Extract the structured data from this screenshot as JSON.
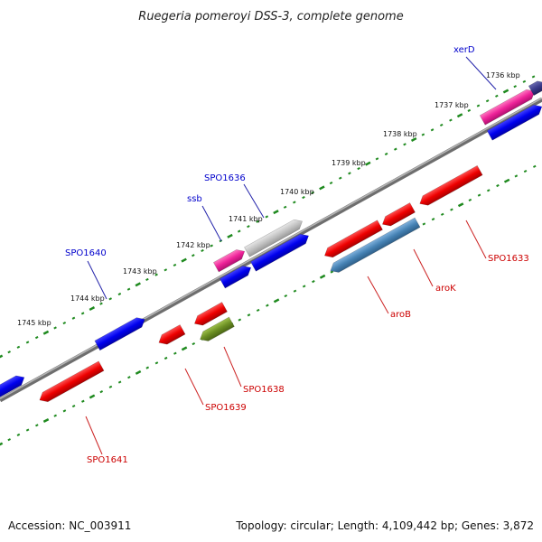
{
  "title": "Ruegeria pomeroyi DSS-3, complete genome",
  "footer": {
    "accession": "Accession: NC_003911",
    "summary": "Topology: circular; Length: 4,109,442 bp; Genes: 3,872"
  },
  "kbp_ticks": [
    "1736 kbp",
    "1737 kbp",
    "1738 kbp",
    "1739 kbp",
    "1740 kbp",
    "1741 kbp",
    "1742 kbp",
    "1743 kbp",
    "1744 kbp",
    "1745 kbp"
  ],
  "forward_labels": [
    "xerD",
    "SPO1636",
    "ssb",
    "SPO1640"
  ],
  "reverse_labels": [
    "SPO1633",
    "aroK",
    "aroB",
    "SPO1638",
    "SPO1639",
    "SPO1641"
  ],
  "colors": {
    "forward_label": "#0000cc",
    "reverse_label": "#cc0000",
    "backbone": "#888888",
    "tick": "#1f8a1f",
    "gene_blue": "#0000ee",
    "gene_red": "#ee0000",
    "gene_pink": "#ee2299",
    "gene_gray": "#bbbbbb",
    "gene_steelblue": "#4682b4",
    "gene_olive": "#6b8e23",
    "gene_navy": "#3a3a8a"
  }
}
